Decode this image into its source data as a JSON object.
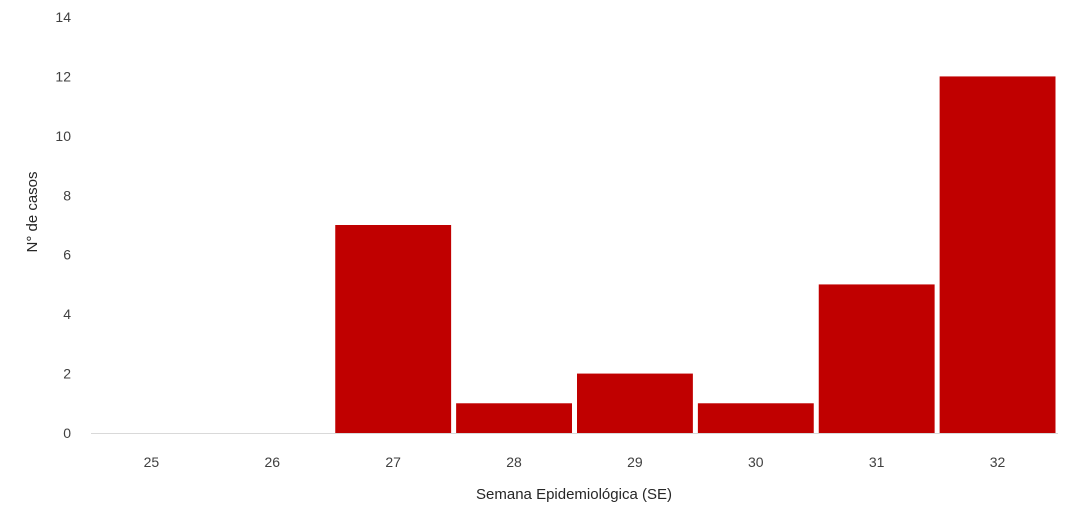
{
  "chart_data": {
    "type": "bar",
    "categories": [
      "25",
      "26",
      "27",
      "28",
      "29",
      "30",
      "31",
      "32"
    ],
    "values": [
      0,
      0,
      7,
      1,
      2,
      1,
      5,
      12
    ],
    "xlabel": "Semana Epidemiológica (SE)",
    "ylabel": "N° de casos",
    "ylim": [
      0,
      14
    ],
    "yticks": [
      0,
      2,
      4,
      6,
      8,
      10,
      12,
      14
    ],
    "grid": false,
    "bar_color": "#C00000",
    "axis_color": "#D9D9D9"
  }
}
